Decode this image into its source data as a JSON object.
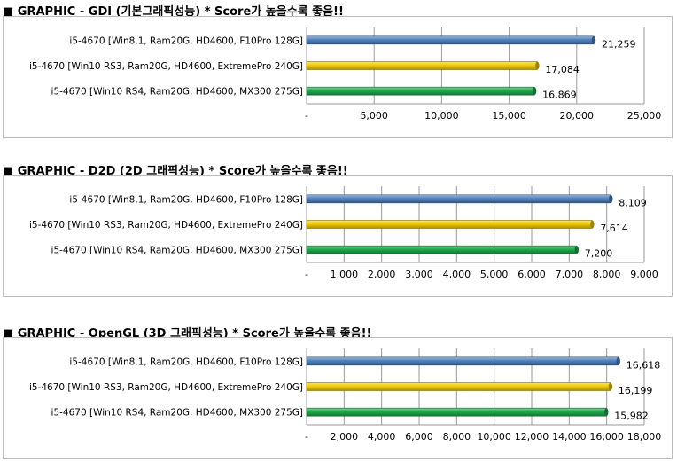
{
  "chart_data": [
    {
      "type": "bar",
      "orientation": "horizontal",
      "title": "■ GRAPHIC - GDI (기본그래픽성능)  * Score가 높을수록 좋음!!",
      "categories": [
        "i5-4670 [Win8.1, Ram20G,  HD4600, F10Pro 128G]",
        "i5-4670 [Win10 RS3, Ram20G,  HD4600, ExtremePro 240G]",
        "i5-4670 [Win10 RS4, Ram20G,  HD4600, MX300 275G]"
      ],
      "values": [
        21259,
        17084,
        16869
      ],
      "value_labels": [
        "21,259",
        "17,084",
        "16,869"
      ],
      "bar_colors": [
        "#4f81bd",
        "#f2cb05",
        "#1fa94b"
      ],
      "xlim": [
        0,
        25000
      ],
      "ticks": [
        0,
        5000,
        10000,
        15000,
        20000,
        25000
      ],
      "tick_labels": [
        "-",
        "5,000",
        "10,000",
        "15,000",
        "20,000",
        "25,000"
      ],
      "grid": true
    },
    {
      "type": "bar",
      "orientation": "horizontal",
      "title": "■ GRAPHIC - D2D (2D 그래픽성능)   * Score가 높을수록 좋음!!",
      "categories": [
        "i5-4670 [Win8.1, Ram20G,  HD4600, F10Pro 128G]",
        "i5-4670 [Win10 RS3, Ram20G,  HD4600, ExtremePro 240G]",
        "i5-4670 [Win10 RS4, Ram20G,  HD4600, MX300 275G]"
      ],
      "values": [
        8109,
        7614,
        7200
      ],
      "value_labels": [
        "8,109",
        "7,614",
        "7,200"
      ],
      "bar_colors": [
        "#4f81bd",
        "#f2cb05",
        "#1fa94b"
      ],
      "xlim": [
        0,
        9000
      ],
      "ticks": [
        0,
        1000,
        2000,
        3000,
        4000,
        5000,
        6000,
        7000,
        8000,
        9000
      ],
      "tick_labels": [
        "-",
        "1,000",
        "2,000",
        "3,000",
        "4,000",
        "5,000",
        "6,000",
        "7,000",
        "8,000",
        "9,000"
      ],
      "grid": true
    },
    {
      "type": "bar",
      "orientation": "horizontal",
      "title": "■ GRAPHIC - OpenGL (3D 그래픽성능)  * Score가 높을수록 좋음!!",
      "categories": [
        "i5-4670 [Win8.1, Ram20G,  HD4600, F10Pro 128G]",
        "i5-4670 [Win10 RS3, Ram20G,  HD4600, ExtremePro 240G]",
        "i5-4670 [Win10 RS4, Ram20G,  HD4600, MX300 275G]"
      ],
      "values": [
        16618,
        16199,
        15982
      ],
      "value_labels": [
        "16,618",
        "16,199",
        "15,982"
      ],
      "bar_colors": [
        "#4f81bd",
        "#f2cb05",
        "#1fa94b"
      ],
      "xlim": [
        0,
        18000
      ],
      "ticks": [
        0,
        2000,
        4000,
        6000,
        8000,
        10000,
        12000,
        14000,
        16000,
        18000
      ],
      "tick_labels": [
        "-",
        "2,000",
        "4,000",
        "6,000",
        "8,000",
        "10,000",
        "12,000",
        "14,000",
        "16,000",
        "18,000"
      ],
      "grid": true
    }
  ]
}
